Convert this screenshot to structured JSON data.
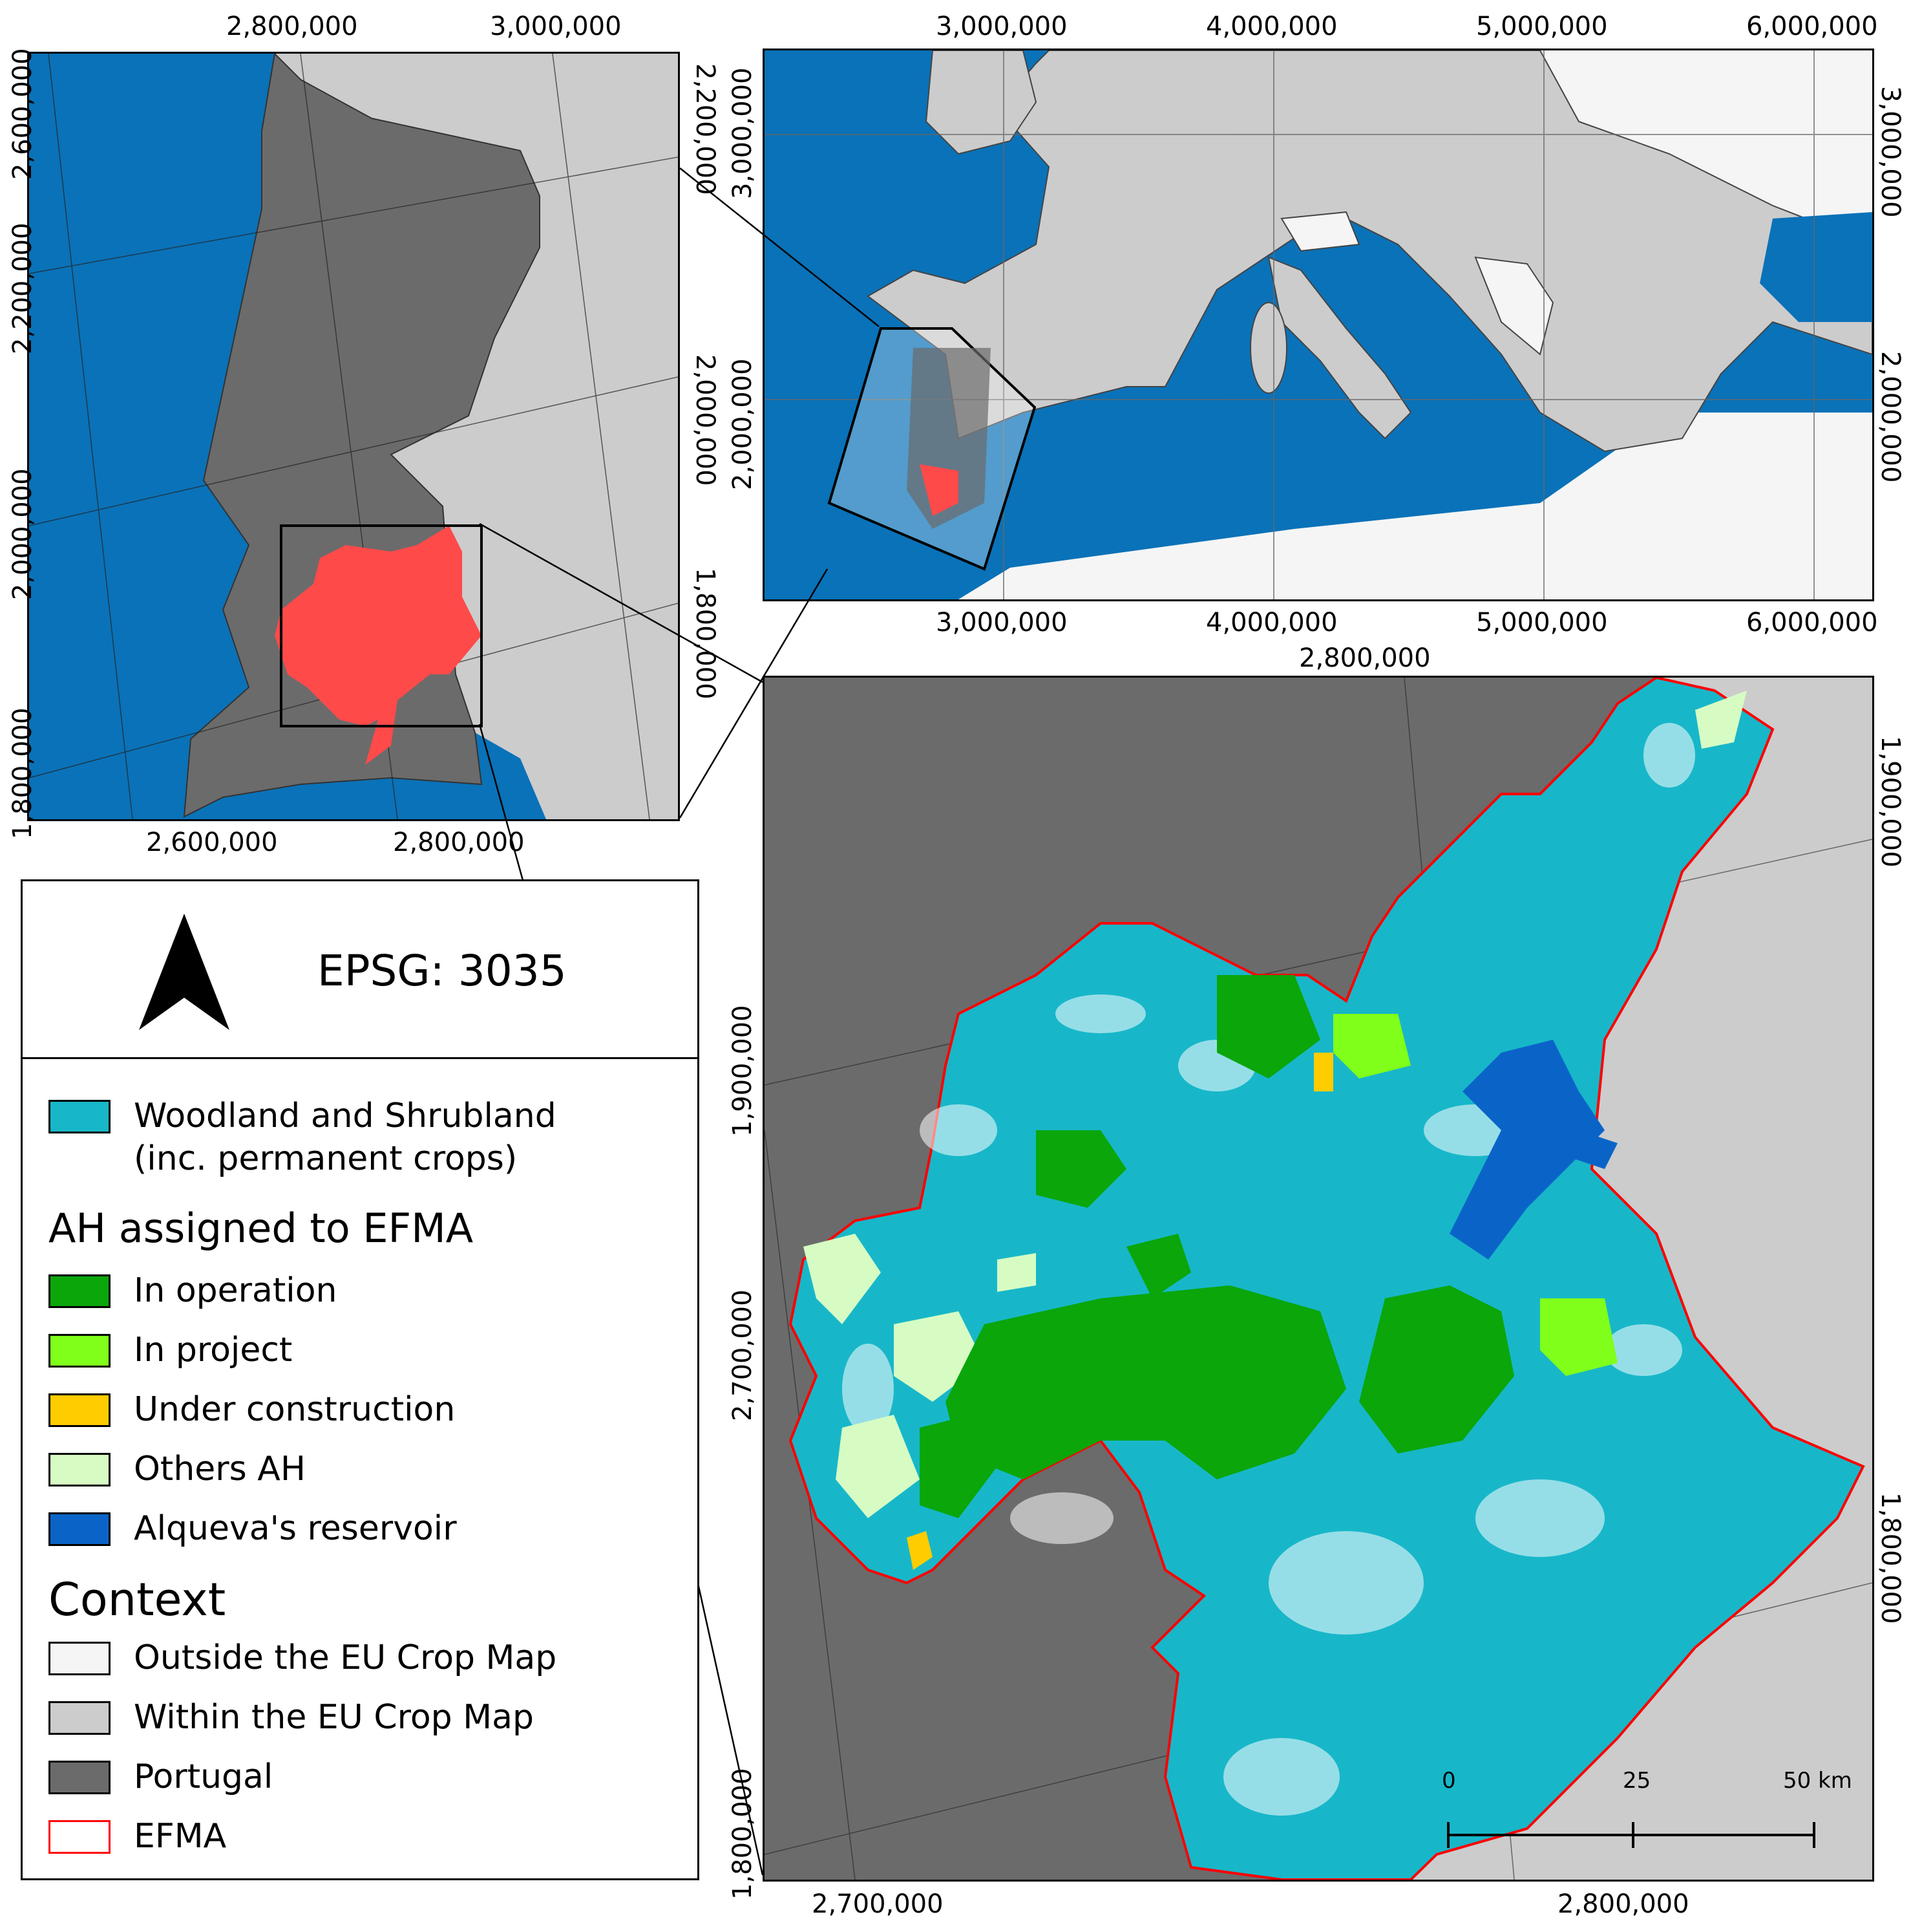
{
  "inset_portugal": {
    "top_labels": [
      "2,800,000",
      "3,000,000"
    ],
    "bottom_labels": [
      "2,600,000",
      "2,800,000"
    ],
    "left_labels": [
      "2,600,000",
      "2,200,000",
      "2,000,000",
      "1,800,000"
    ],
    "right_labels": [
      "2,200,000",
      "2,000,000",
      "1,800,000"
    ]
  },
  "inset_europe": {
    "top_labels": [
      "3,000,000",
      "4,000,000",
      "5,000,000",
      "6,000,000"
    ],
    "bottom_labels": [
      "3,000,000",
      "4,000,000",
      "5,000,000",
      "6,000,000"
    ],
    "left_labels": [
      "3,000,000",
      "2,000,000"
    ],
    "right_labels": [
      "3,000,000",
      "2,000,000"
    ]
  },
  "main_map": {
    "top_labels": [
      "2,800,000"
    ],
    "bottom_labels": [
      "2,700,000",
      "2,800,000"
    ],
    "left_labels": [
      "1,900,000",
      "2,700,000",
      "1,800,000"
    ],
    "right_labels": [
      "1,900,000",
      "1,800,000"
    ],
    "scale_bar": {
      "labels": [
        "0",
        "25",
        "50 km"
      ]
    }
  },
  "legend": {
    "epsg": "EPSG: 3035",
    "north_arrow": "north-arrow-icon",
    "woodland": {
      "label_line1": "Woodland and Shrubland",
      "label_line2": "(inc. permanent crops)",
      "color": "#17b7c9"
    },
    "ah_heading": "AH assigned to EFMA",
    "ah_items": [
      {
        "label": "In operation",
        "color": "#0aa60a"
      },
      {
        "label": "In project",
        "color": "#7fff1a"
      },
      {
        "label": "Under construction",
        "color": "#ffcc00"
      },
      {
        "label": "Others AH",
        "color": "#d6fcc4"
      },
      {
        "label": "Alqueva's reservoir",
        "color": "#0a64c8"
      }
    ],
    "context_heading": "Context",
    "context_items": [
      {
        "label": "Outside the EU Crop Map",
        "color": "#f5f5f5"
      },
      {
        "label": "Within the EU Crop Map",
        "color": "#cccccc"
      },
      {
        "label": "Portugal",
        "color": "#6b6b6b"
      },
      {
        "label": "EFMA",
        "color": "#ffffff",
        "border": "#ff0000"
      }
    ]
  },
  "colors": {
    "sea": "#0a72b8",
    "portugal": "#6b6b6b",
    "within": "#cccccc",
    "outside": "#f5f5f5",
    "efma": "#ff4a4a",
    "efma_border": "#ff0000",
    "woodland": "#17b7c9"
  }
}
